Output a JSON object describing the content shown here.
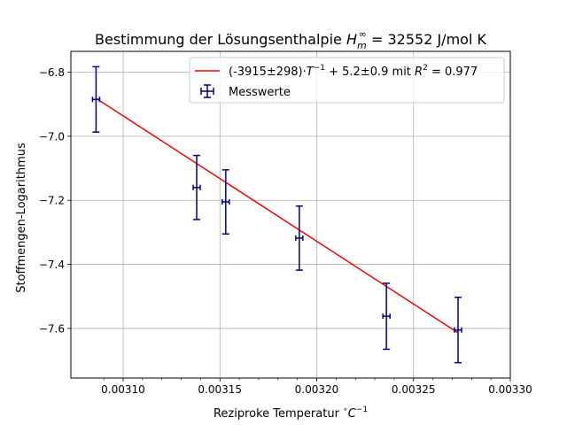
{
  "chart_data": {
    "type": "scatter",
    "title_parts": {
      "prefix": "Bestimmung der Lösungsenthalpie ",
      "var": "H",
      "sub": "m",
      "sup": "∞",
      "suffix": " = 32552 J/mol K"
    },
    "xlabel_parts": {
      "prefix": "Reziproke Temperatur ",
      "unit_sup_before": "∘",
      "unit": "C",
      "unit_sup": "−1"
    },
    "ylabel": "Stoffmengen-Logarithmus",
    "xlim": [
      0.003073,
      0.0033
    ],
    "ylim": [
      -7.755,
      -6.735
    ],
    "x_ticks": [
      0.0031,
      0.00315,
      0.0032,
      0.00325,
      0.0033
    ],
    "x_tick_labels": [
      "0.00310",
      "0.00315",
      "0.00320",
      "0.00325",
      "0.00330"
    ],
    "y_ticks": [
      -7.6,
      -7.4,
      -7.2,
      -7.0,
      -6.8
    ],
    "y_tick_labels": [
      "−7.6",
      "−7.4",
      "−7.2",
      "−7.0",
      "−6.8"
    ],
    "grid": true,
    "legend_placement": "top-right",
    "series": [
      {
        "name": "Messwerte",
        "kind": "errorbar",
        "color": "#000080",
        "points": [
          {
            "x": 0.003086,
            "y": -6.885,
            "xerr": 1.5e-06,
            "yerr": 0.102
          },
          {
            "x": 0.003138,
            "y": -7.16,
            "xerr": 1.5e-06,
            "yerr": 0.1
          },
          {
            "x": 0.003153,
            "y": -7.205,
            "xerr": 1.5e-06,
            "yerr": 0.1
          },
          {
            "x": 0.003191,
            "y": -7.318,
            "xerr": 1.5e-06,
            "yerr": 0.1
          },
          {
            "x": 0.003236,
            "y": -7.562,
            "xerr": 1.5e-06,
            "yerr": 0.103
          },
          {
            "x": 0.003273,
            "y": -7.605,
            "xerr": 1.5e-06,
            "yerr": 0.102
          }
        ]
      },
      {
        "name_parts": {
          "a": "(-3915±298)",
          "b": "·",
          "t": "T",
          "exp": "−1",
          "rest": " + 5.2±0.9 mit ",
          "r": "R",
          "r2sup": "2",
          "eq": " = 0.977"
        },
        "kind": "fit",
        "color": "#ff0000",
        "slope": -3915,
        "intercept": 5.2,
        "x_range": [
          0.003086,
          0.003273
        ]
      }
    ]
  }
}
